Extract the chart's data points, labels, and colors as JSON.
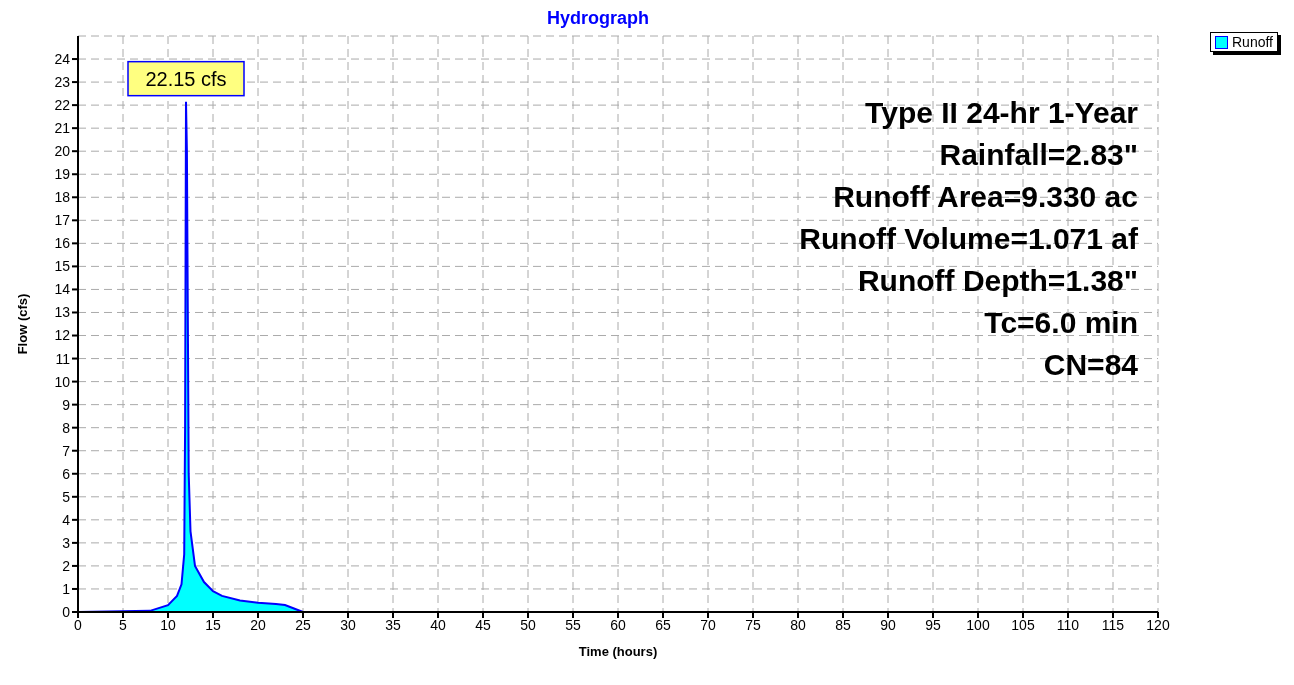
{
  "chart_data": {
    "type": "area",
    "title": "Hydrograph",
    "xlabel": "Time  (hours)",
    "ylabel": "Flow  (cfs)",
    "x": [
      0,
      8,
      10,
      11,
      11.5,
      11.8,
      11.9,
      12,
      12.1,
      12.2,
      12.3,
      12.5,
      13,
      14,
      15,
      16,
      18,
      20,
      22,
      23,
      24,
      25,
      120
    ],
    "series": [
      {
        "name": "Runoff",
        "color": "#00ffff",
        "values": [
          0,
          0.05,
          0.3,
          0.7,
          1.2,
          2.5,
          8,
          22.15,
          20,
          13,
          6,
          3.5,
          2,
          1.3,
          0.9,
          0.7,
          0.5,
          0.4,
          0.35,
          0.3,
          0.15,
          0,
          0
        ]
      }
    ],
    "xlim": [
      0,
      120
    ],
    "xticks": [
      0,
      5,
      10,
      15,
      20,
      25,
      30,
      35,
      40,
      45,
      50,
      55,
      60,
      65,
      70,
      75,
      80,
      85,
      90,
      95,
      100,
      105,
      110,
      115,
      120
    ],
    "ylim": [
      0,
      25
    ],
    "yticks": [
      0,
      1,
      2,
      3,
      4,
      5,
      6,
      7,
      8,
      9,
      10,
      11,
      12,
      13,
      14,
      15,
      16,
      17,
      18,
      19,
      20,
      21,
      22,
      23,
      24
    ],
    "grid": true,
    "legend": "top right",
    "annotations": [
      {
        "text": "22.15 cfs",
        "x": 12,
        "y": 22.15
      },
      "Type II 24-hr 1-Year",
      "Rainfall=2.83\"",
      "Runoff Area=9.330 ac",
      "Runoff Volume=1.071 af",
      "Runoff Depth=1.38\"",
      "Tc=6.0 min",
      "CN=84"
    ]
  }
}
